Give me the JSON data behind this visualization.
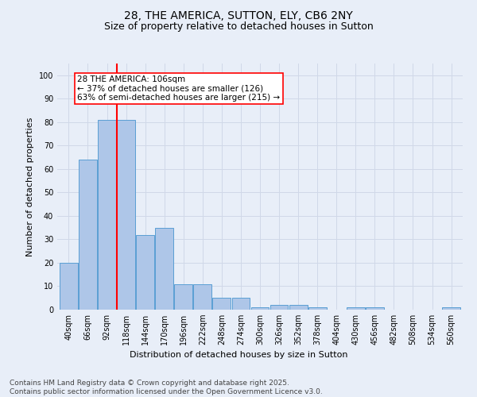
{
  "title_line1": "28, THE AMERICA, SUTTON, ELY, CB6 2NY",
  "title_line2": "Size of property relative to detached houses in Sutton",
  "xlabel": "Distribution of detached houses by size in Sutton",
  "ylabel": "Number of detached properties",
  "categories": [
    "40sqm",
    "66sqm",
    "92sqm",
    "118sqm",
    "144sqm",
    "170sqm",
    "196sqm",
    "222sqm",
    "248sqm",
    "274sqm",
    "300sqm",
    "326sqm",
    "352sqm",
    "378sqm",
    "404sqm",
    "430sqm",
    "456sqm",
    "482sqm",
    "508sqm",
    "534sqm",
    "560sqm"
  ],
  "values": [
    20,
    64,
    81,
    81,
    32,
    35,
    11,
    11,
    5,
    5,
    1,
    2,
    2,
    1,
    0,
    1,
    1,
    0,
    0,
    0,
    1
  ],
  "bar_color": "#aec6e8",
  "bar_edge_color": "#5a9fd4",
  "vline_x": 2.5,
  "vline_color": "red",
  "annotation_text": "28 THE AMERICA: 106sqm\n← 37% of detached houses are smaller (126)\n63% of semi-detached houses are larger (215) →",
  "annotation_box_color": "white",
  "annotation_box_edge_color": "red",
  "ylim": [
    0,
    105
  ],
  "yticks": [
    0,
    10,
    20,
    30,
    40,
    50,
    60,
    70,
    80,
    90,
    100
  ],
  "grid_color": "#d0d8e8",
  "bg_color": "#e8eef8",
  "footnote": "Contains HM Land Registry data © Crown copyright and database right 2025.\nContains public sector information licensed under the Open Government Licence v3.0.",
  "title_fontsize": 10,
  "subtitle_fontsize": 9,
  "axis_label_fontsize": 8,
  "tick_fontsize": 7,
  "annotation_fontsize": 7.5,
  "footnote_fontsize": 6.5
}
